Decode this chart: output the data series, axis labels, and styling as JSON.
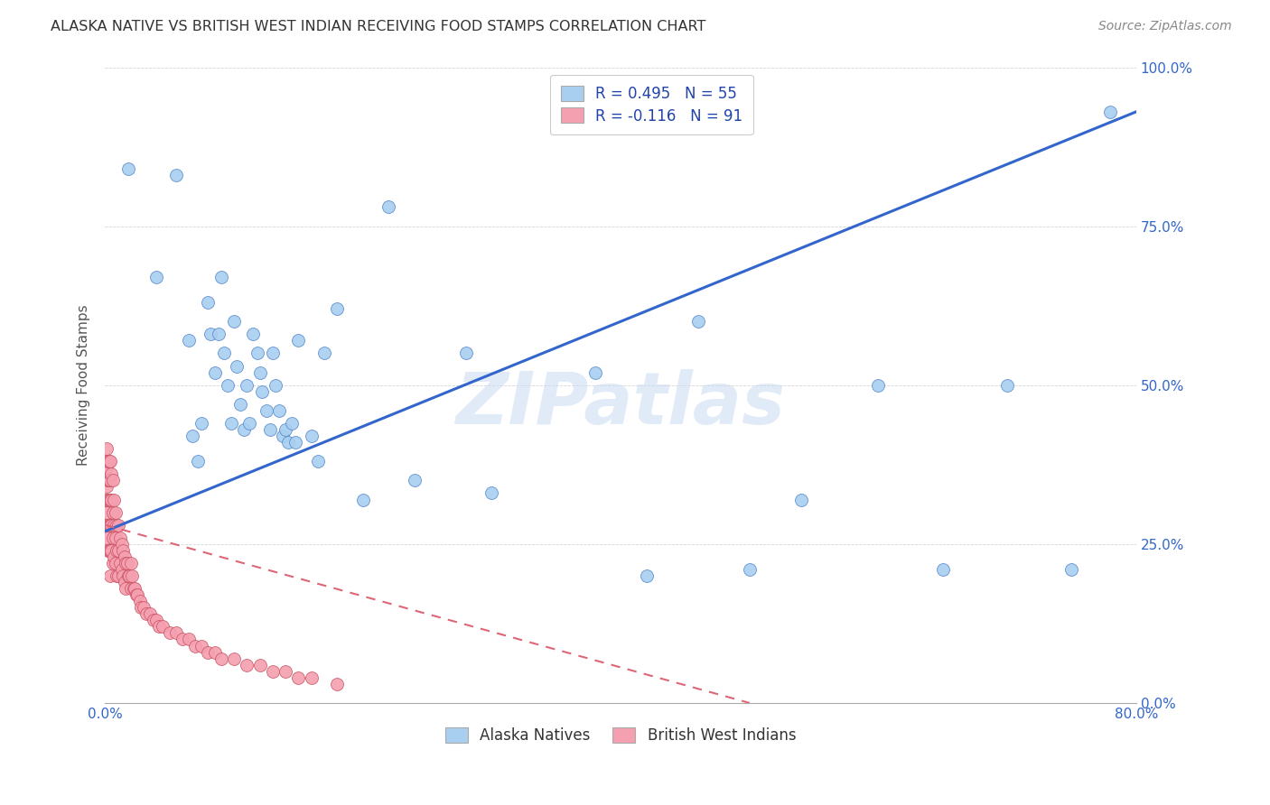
{
  "title": "ALASKA NATIVE VS BRITISH WEST INDIAN RECEIVING FOOD STAMPS CORRELATION CHART",
  "source": "Source: ZipAtlas.com",
  "ylabel": "Receiving Food Stamps",
  "watermark": "ZIPatlas",
  "legend_r1": "R = 0.495",
  "legend_n1": "N = 55",
  "legend_r2": "R = -0.116",
  "legend_n2": "N = 91",
  "legend_label1": "Alaska Natives",
  "legend_label2": "British West Indians",
  "color_blue": "#a8cff0",
  "color_pink": "#f4a0b0",
  "trendline1_color": "#3366cc",
  "trendline2_color": "#dd6677",
  "xlim": [
    0.0,
    0.8
  ],
  "ylim": [
    0.0,
    1.0
  ],
  "alaska_x": [
    0.018,
    0.04,
    0.055,
    0.065,
    0.068,
    0.072,
    0.075,
    0.08,
    0.082,
    0.085,
    0.088,
    0.09,
    0.092,
    0.095,
    0.098,
    0.1,
    0.102,
    0.105,
    0.108,
    0.11,
    0.112,
    0.115,
    0.118,
    0.12,
    0.122,
    0.125,
    0.128,
    0.13,
    0.132,
    0.135,
    0.138,
    0.14,
    0.142,
    0.145,
    0.148,
    0.15,
    0.16,
    0.165,
    0.17,
    0.18,
    0.2,
    0.22,
    0.24,
    0.28,
    0.3,
    0.38,
    0.42,
    0.46,
    0.5,
    0.54,
    0.6,
    0.65,
    0.7,
    0.75,
    0.78
  ],
  "alaska_y": [
    0.84,
    0.67,
    0.83,
    0.57,
    0.42,
    0.38,
    0.44,
    0.63,
    0.58,
    0.52,
    0.58,
    0.67,
    0.55,
    0.5,
    0.44,
    0.6,
    0.53,
    0.47,
    0.43,
    0.5,
    0.44,
    0.58,
    0.55,
    0.52,
    0.49,
    0.46,
    0.43,
    0.55,
    0.5,
    0.46,
    0.42,
    0.43,
    0.41,
    0.44,
    0.41,
    0.57,
    0.42,
    0.38,
    0.55,
    0.62,
    0.32,
    0.78,
    0.35,
    0.55,
    0.33,
    0.52,
    0.2,
    0.6,
    0.21,
    0.32,
    0.5,
    0.21,
    0.5,
    0.21,
    0.93
  ],
  "bwi_x": [
    0.0,
    0.0,
    0.0,
    0.0,
    0.001,
    0.001,
    0.001,
    0.001,
    0.001,
    0.002,
    0.002,
    0.002,
    0.002,
    0.002,
    0.003,
    0.003,
    0.003,
    0.003,
    0.003,
    0.004,
    0.004,
    0.004,
    0.004,
    0.004,
    0.004,
    0.005,
    0.005,
    0.005,
    0.005,
    0.006,
    0.006,
    0.006,
    0.006,
    0.007,
    0.007,
    0.007,
    0.008,
    0.008,
    0.008,
    0.009,
    0.009,
    0.009,
    0.01,
    0.01,
    0.01,
    0.012,
    0.012,
    0.013,
    0.013,
    0.014,
    0.014,
    0.015,
    0.015,
    0.016,
    0.016,
    0.017,
    0.018,
    0.019,
    0.02,
    0.02,
    0.021,
    0.022,
    0.023,
    0.024,
    0.025,
    0.027,
    0.028,
    0.03,
    0.032,
    0.035,
    0.038,
    0.04,
    0.042,
    0.045,
    0.05,
    0.055,
    0.06,
    0.065,
    0.07,
    0.075,
    0.08,
    0.085,
    0.09,
    0.1,
    0.11,
    0.12,
    0.13,
    0.14,
    0.15,
    0.16,
    0.18
  ],
  "bwi_y": [
    0.38,
    0.35,
    0.32,
    0.28,
    0.4,
    0.37,
    0.34,
    0.3,
    0.26,
    0.38,
    0.35,
    0.32,
    0.28,
    0.24,
    0.38,
    0.35,
    0.32,
    0.28,
    0.24,
    0.38,
    0.35,
    0.32,
    0.28,
    0.24,
    0.2,
    0.36,
    0.32,
    0.28,
    0.24,
    0.35,
    0.3,
    0.26,
    0.22,
    0.32,
    0.28,
    0.23,
    0.3,
    0.26,
    0.22,
    0.28,
    0.24,
    0.2,
    0.28,
    0.24,
    0.2,
    0.26,
    0.22,
    0.25,
    0.21,
    0.24,
    0.2,
    0.23,
    0.19,
    0.22,
    0.18,
    0.22,
    0.2,
    0.2,
    0.22,
    0.18,
    0.2,
    0.18,
    0.18,
    0.17,
    0.17,
    0.16,
    0.15,
    0.15,
    0.14,
    0.14,
    0.13,
    0.13,
    0.12,
    0.12,
    0.11,
    0.11,
    0.1,
    0.1,
    0.09,
    0.09,
    0.08,
    0.08,
    0.07,
    0.07,
    0.06,
    0.06,
    0.05,
    0.05,
    0.04,
    0.04,
    0.03
  ]
}
